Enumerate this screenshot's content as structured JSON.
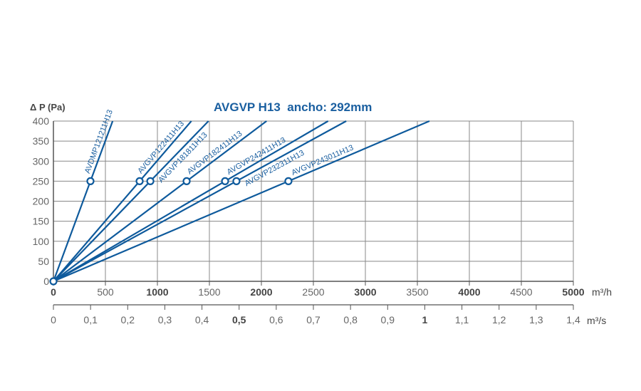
{
  "chart_data": {
    "type": "line",
    "title": "AVGVP H13  ancho: 292mm",
    "ylabel": "Δ P (Pa)",
    "xlabel": "m³/h",
    "x2label": "m³/s",
    "xlim": [
      0,
      5000
    ],
    "ylim": [
      0,
      400
    ],
    "x2lim": [
      0,
      1.4
    ],
    "grid": true,
    "yticks": [
      0,
      50,
      100,
      150,
      200,
      250,
      300,
      350,
      400
    ],
    "xticks": [
      {
        "v": 0,
        "t": "0",
        "b": true
      },
      {
        "v": 500,
        "t": "500",
        "b": false
      },
      {
        "v": 1000,
        "t": "1000",
        "b": true
      },
      {
        "v": 1500,
        "t": "1500",
        "b": false
      },
      {
        "v": 2000,
        "t": "2000",
        "b": true
      },
      {
        "v": 2500,
        "t": "2500",
        "b": false
      },
      {
        "v": 3000,
        "t": "3000",
        "b": true
      },
      {
        "v": 3500,
        "t": "3500",
        "b": false
      },
      {
        "v": 4000,
        "t": "4000",
        "b": true
      },
      {
        "v": 4500,
        "t": "4500",
        "b": false
      },
      {
        "v": 5000,
        "t": "5000",
        "b": true
      }
    ],
    "x2ticks": [
      {
        "v": 0,
        "t": "0",
        "b": false
      },
      {
        "v": 0.1,
        "t": "0,1",
        "b": false
      },
      {
        "v": 0.2,
        "t": "0,2",
        "b": false
      },
      {
        "v": 0.3,
        "t": "0,3",
        "b": false
      },
      {
        "v": 0.4,
        "t": "0,4",
        "b": false
      },
      {
        "v": 0.5,
        "t": "0,5",
        "b": true
      },
      {
        "v": 0.6,
        "t": "0,6",
        "b": false
      },
      {
        "v": 0.7,
        "t": "0,7",
        "b": false
      },
      {
        "v": 0.8,
        "t": "0,8",
        "b": false
      },
      {
        "v": 0.9,
        "t": "0,9",
        "b": false
      },
      {
        "v": 1.0,
        "t": "1",
        "b": true
      },
      {
        "v": 1.1,
        "t": "1,1",
        "b": false
      },
      {
        "v": 1.2,
        "t": "1,2",
        "b": false
      },
      {
        "v": 1.3,
        "t": "1,3",
        "b": false
      },
      {
        "v": 1.4,
        "t": "1,4",
        "b": false
      }
    ],
    "operating_pressure": 250,
    "series": [
      {
        "name": "AVDMP121211H13",
        "flow_at_250Pa": 356
      },
      {
        "name": "AVGVP122411H13",
        "flow_at_250Pa": 829
      },
      {
        "name": "AVGVP181811H13",
        "flow_at_250Pa": 932
      },
      {
        "name": "AVGVP182411H13",
        "flow_at_250Pa": 1281
      },
      {
        "name": "AVGVP242411H13",
        "flow_at_250Pa": 1651
      },
      {
        "name": "AVGVP232311H13",
        "flow_at_250Pa": 1760
      },
      {
        "name": "AVGVP243011H13",
        "flow_at_250Pa": 2260
      }
    ],
    "colors": {
      "line": "#0e5a9c",
      "grid": "#888888",
      "title": "#1a5fa0"
    }
  }
}
